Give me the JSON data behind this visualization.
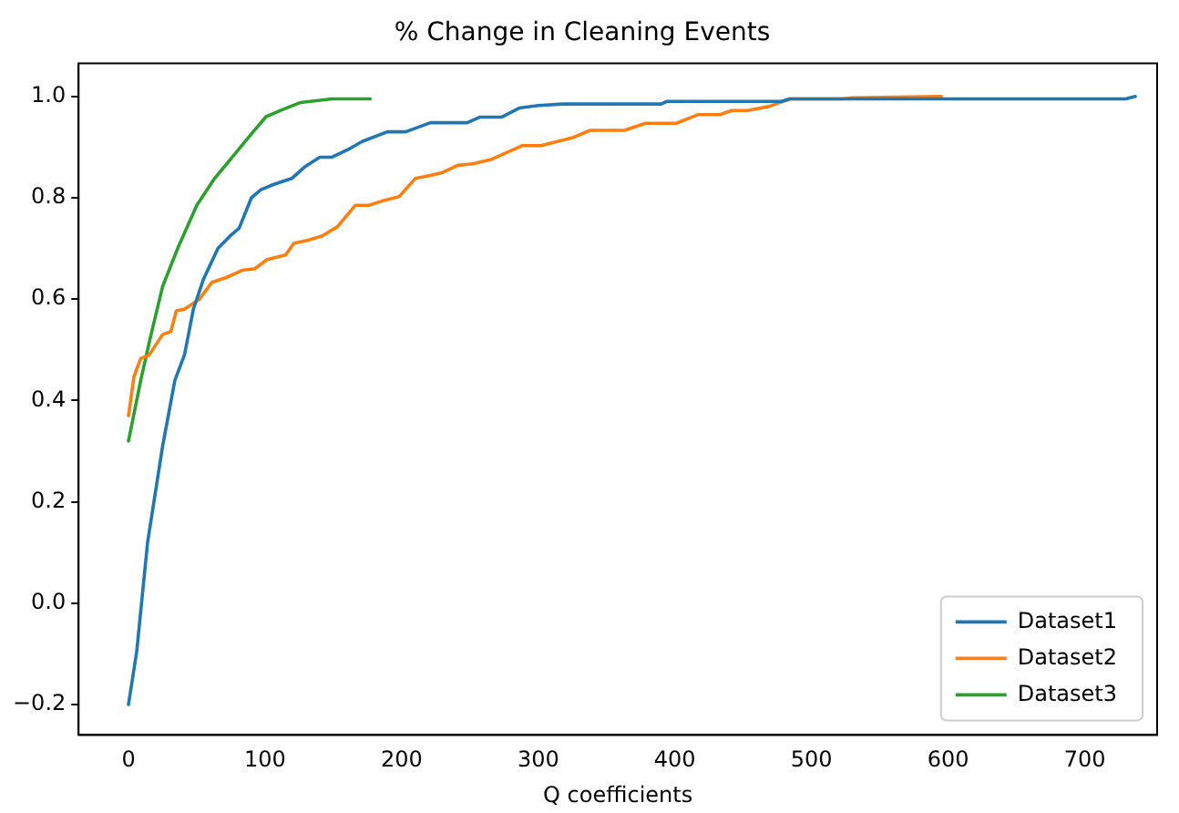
{
  "chart_data": {
    "type": "line",
    "title": "% Change in Cleaning Events",
    "xlabel": "Q coefficients",
    "xlim": [
      -36.5,
      753
    ],
    "xticks": [
      0,
      100,
      200,
      300,
      400,
      500,
      600,
      700
    ],
    "ylim": [
      -0.26,
      1.065
    ],
    "yticks": [
      {
        "value": -0.2,
        "label": "−0.2"
      },
      {
        "value": 0,
        "label": "0.0"
      },
      {
        "value": 0.2,
        "label": "0.2"
      },
      {
        "value": 0.4,
        "label": "0.4"
      },
      {
        "value": 0.6,
        "label": "0.6"
      },
      {
        "value": 0.8,
        "label": "0.8"
      },
      {
        "value": 1,
        "label": "1.0"
      }
    ],
    "grid": false,
    "legend": "bottom right",
    "marker": "none",
    "line_style": "solid",
    "series": [
      {
        "name": "Dataset1",
        "color": "#1f77b4",
        "x": [
          0,
          6,
          14,
          25,
          34,
          41,
          47.5,
          55,
          65.5,
          74.5,
          81,
          90,
          97,
          106,
          119.5,
          128.6,
          140,
          149,
          162,
          171,
          189.5,
          203,
          221,
          248,
          257,
          273,
          286,
          300,
          318,
          390,
          394,
          478,
          484,
          730,
          737
        ],
        "values": [
          -0.2,
          -0.096,
          0.12,
          0.31,
          0.44,
          0.49,
          0.58,
          0.64,
          0.7,
          0.725,
          0.74,
          0.8,
          0.816,
          0.826,
          0.838,
          0.86,
          0.88,
          0.88,
          0.897,
          0.911,
          0.93,
          0.93,
          0.948,
          0.948,
          0.959,
          0.959,
          0.977,
          0.982,
          0.985,
          0.985,
          0.99,
          0.99,
          0.995,
          0.995,
          1.0
        ]
      },
      {
        "name": "Dataset2",
        "color": "#ff7f0e",
        "x": [
          0,
          4,
          9,
          15,
          20.5,
          25,
          31,
          35,
          41,
          52,
          61,
          72,
          83.5,
          92.5,
          101.6,
          115,
          121,
          131,
          142,
          153,
          166,
          176,
          185,
          198,
          210,
          221,
          230,
          241,
          252,
          266,
          288.5,
          302,
          324.6,
          338,
          363,
          378.6,
          401,
          417,
          433,
          441.6,
          453,
          468.6,
          484.5,
          523,
          529.5,
          595
        ],
        "values": [
          0.37,
          0.447,
          0.483,
          0.489,
          0.512,
          0.53,
          0.536,
          0.577,
          0.58,
          0.6,
          0.633,
          0.643,
          0.657,
          0.66,
          0.678,
          0.687,
          0.71,
          0.716,
          0.725,
          0.743,
          0.785,
          0.785,
          0.793,
          0.802,
          0.838,
          0.844,
          0.85,
          0.864,
          0.867,
          0.876,
          0.903,
          0.903,
          0.918,
          0.933,
          0.933,
          0.947,
          0.947,
          0.964,
          0.964,
          0.972,
          0.972,
          0.98,
          0.995,
          0.995,
          0.997,
          1.0
        ]
      },
      {
        "name": "Dataset3",
        "color": "#2ca02c",
        "x": [
          0,
          9,
          16,
          25,
          36,
          50,
          63,
          79,
          90,
          100.7,
          113,
          126,
          149,
          177
        ],
        "values": [
          0.32,
          0.44,
          0.524,
          0.625,
          0.7,
          0.785,
          0.838,
          0.89,
          0.926,
          0.96,
          0.974,
          0.988,
          0.995,
          0.995
        ]
      }
    ]
  }
}
